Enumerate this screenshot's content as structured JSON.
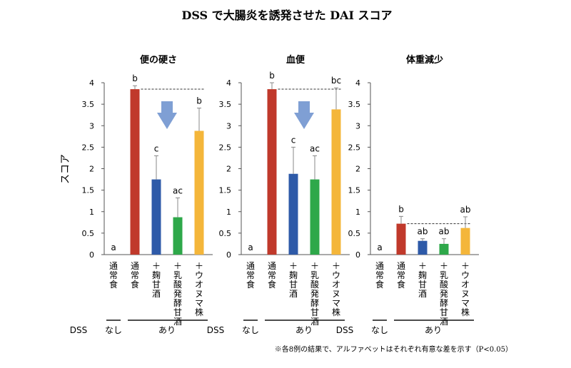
{
  "figure": {
    "title": "DSS で大腸炎を誘発させた DAI スコア",
    "ylabel": "スコア",
    "footnote": "※各8例の結果で、アルファベットはそれぞれ有意な差を示す（P<0.05）"
  },
  "colors": {
    "groups": [
      "#ffffff",
      "#c0392b",
      "#2e5aa8",
      "#2ea84a",
      "#f4b63a"
    ],
    "arrow": "#7f9fd4"
  },
  "chart_data": [
    {
      "type": "bar",
      "title": "便の硬さ",
      "categories": [
        "通常食",
        "通常食",
        "＋麹甘酒",
        "＋乳酸発酵甘酒",
        "＋ウオヌマ株"
      ],
      "values": [
        0,
        3.85,
        1.75,
        0.87,
        2.88
      ],
      "errors": [
        0,
        0.08,
        0.55,
        0.45,
        0.53
      ],
      "letters": [
        "a",
        "b",
        "c",
        "ac",
        "b"
      ],
      "ylim": [
        0,
        4
      ],
      "yticks": [
        "0",
        "0.5",
        "1",
        "1.5",
        "2",
        "2.5",
        "3",
        "3.5",
        "4"
      ],
      "reference_line": 3.85,
      "arrow": true
    },
    {
      "type": "bar",
      "title": "血便",
      "categories": [
        "通常食",
        "通常食",
        "＋麹甘酒",
        "＋乳酸発酵甘酒",
        "＋ウオヌマ株"
      ],
      "values": [
        0,
        3.85,
        1.88,
        1.75,
        3.38
      ],
      "errors": [
        0,
        0.15,
        0.62,
        0.55,
        0.5
      ],
      "letters": [
        "a",
        "b",
        "c",
        "ac",
        "bc"
      ],
      "ylim": [
        0,
        4
      ],
      "yticks": [
        "0",
        "0.5",
        "1",
        "1.5",
        "2",
        "2.5",
        "3",
        "3.5",
        "4"
      ],
      "reference_line": 3.85,
      "arrow": true
    },
    {
      "type": "bar",
      "title": "体重減少",
      "categories": [
        "通常食",
        "通常食",
        "＋麹甘酒",
        "＋乳酸発酵甘酒",
        "＋ウオヌマ株"
      ],
      "values": [
        0,
        0.72,
        0.32,
        0.25,
        0.62
      ],
      "errors": [
        0,
        0.17,
        0.05,
        0.12,
        0.26
      ],
      "letters": [
        "a",
        "b",
        "ab",
        "ab",
        "ab"
      ],
      "ylim": [
        0,
        4
      ],
      "yticks": [
        "0",
        "0.5",
        "1",
        "1.5",
        "2",
        "2.5",
        "3",
        "3.5",
        "4"
      ],
      "reference_line": 0.72,
      "arrow": false
    }
  ],
  "dss": {
    "label": "DSS",
    "none": "なし",
    "present": "あり"
  }
}
